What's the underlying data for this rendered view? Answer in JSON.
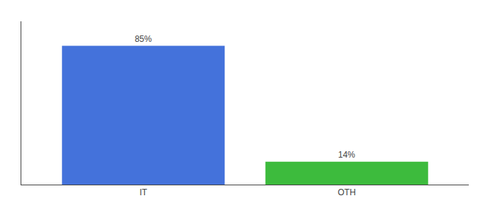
{
  "chart_data": {
    "type": "bar",
    "categories": [
      "IT",
      "OTH"
    ],
    "values": [
      85,
      14
    ],
    "value_labels": [
      "85%",
      "14%"
    ],
    "colors": [
      "#4472db",
      "#3dbb3d"
    ],
    "ylim": [
      0,
      100
    ],
    "yticks": [],
    "data_labels": true,
    "tick_labels": "x",
    "grid": false
  }
}
